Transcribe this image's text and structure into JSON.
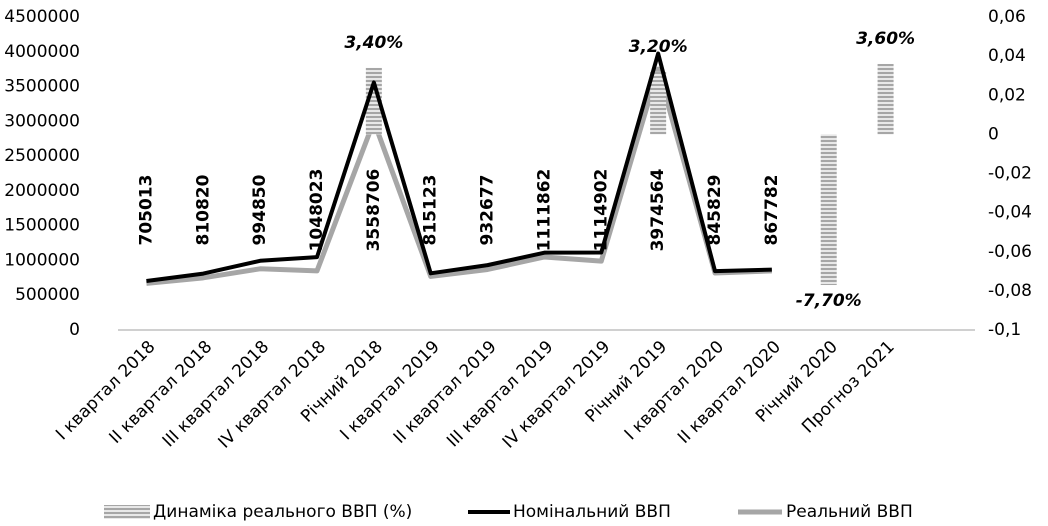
{
  "chart_data": {
    "type": "combo",
    "categories": [
      "I квартал 2018",
      "II квартал 2018",
      "III квартал 2018",
      "IV квартал 2018",
      "Річний 2018",
      "I квартал 2019",
      "II квартал 2019",
      "III квартал 2019",
      "IV квартал 2019",
      "Річний 2019",
      "I квартал 2020",
      "II квартал 2020",
      "Річний 2020",
      "Прогноз 2021"
    ],
    "series": [
      {
        "name": "Динаміка реального ВВП (%)",
        "type": "bar",
        "axis": "y2",
        "color": "#a6a6a6",
        "values": [
          null,
          null,
          null,
          null,
          0.034,
          null,
          null,
          null,
          null,
          0.032,
          null,
          null,
          -0.077,
          0.036
        ],
        "value_labels": [
          null,
          null,
          null,
          null,
          "3,40%",
          null,
          null,
          null,
          null,
          "3,20%",
          null,
          null,
          "-7,70%",
          "3,60%"
        ]
      },
      {
        "name": "Номінальний ВВП",
        "type": "line",
        "color": "#000000",
        "values": [
          705013,
          810820,
          994850,
          1048023,
          3558706,
          815123,
          932677,
          1111862,
          1114902,
          3974564,
          845829,
          867782,
          null,
          null
        ]
      },
      {
        "name": "Реальний ВВП",
        "type": "line",
        "color": "#a6a6a6",
        "values": [
          670000,
          750000,
          880000,
          850000,
          3000000,
          770000,
          870000,
          1050000,
          990000,
          3750000,
          820000,
          850000,
          null,
          null
        ]
      }
    ],
    "ylim": [
      0,
      4500000
    ],
    "yticks": [
      0,
      500000,
      1000000,
      1500000,
      2000000,
      2500000,
      3000000,
      3500000,
      4000000,
      4500000
    ],
    "y2lim": [
      -0.1,
      0.06
    ],
    "y2ticks": [
      {
        "value": -0.1,
        "label": "-0,1"
      },
      {
        "value": -0.08,
        "label": "-0,08"
      },
      {
        "value": -0.06,
        "label": "-0,06"
      },
      {
        "value": -0.04,
        "label": "-0,04"
      },
      {
        "value": -0.02,
        "label": "-0,02"
      },
      0,
      {
        "value": 0.02,
        "label": "0,02"
      },
      {
        "value": 0.04,
        "label": "0,04"
      },
      {
        "value": 0.06,
        "label": "0,06"
      }
    ],
    "legend": "bottom",
    "grid": false
  }
}
